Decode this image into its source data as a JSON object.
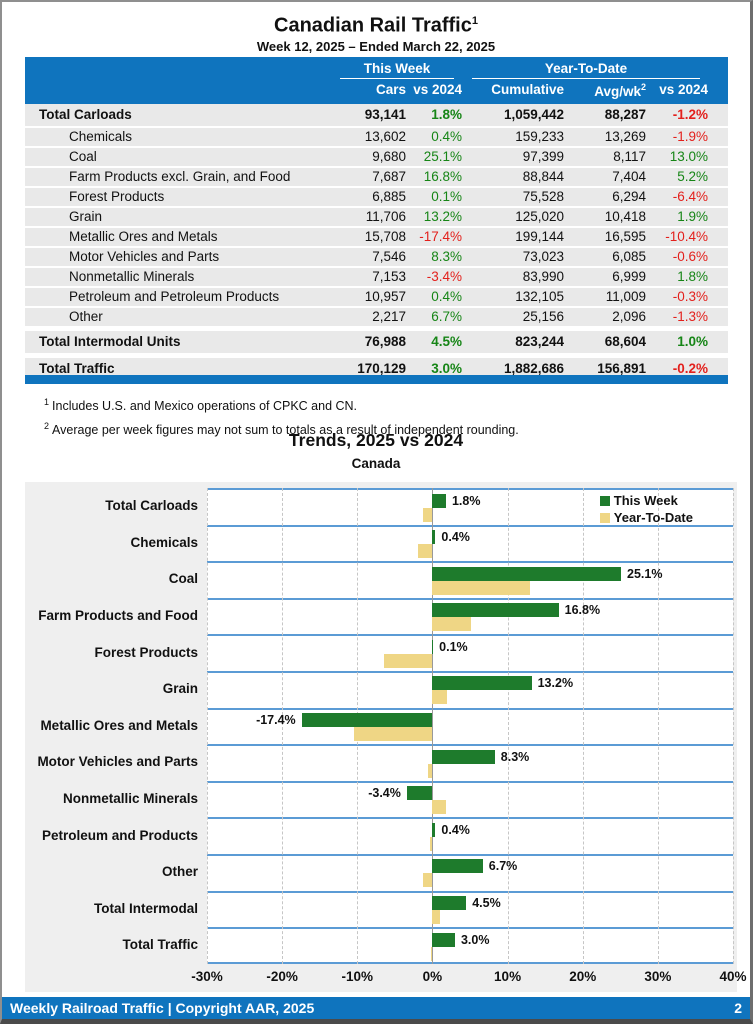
{
  "header": {
    "title": "Canadian Rail Traffic",
    "title_sup": "1",
    "subtitle": "Week 12, 2025 – Ended March 22, 2025"
  },
  "table": {
    "group_headers": [
      {
        "label": "This Week"
      },
      {
        "label": "Year-To-Date"
      }
    ],
    "column_headers": [
      "Cars",
      "vs 2024",
      "Cumulative",
      "Avg/wk",
      "vs 2024"
    ],
    "avgwk_sup": "2",
    "rows": [
      {
        "label": "Total Carloads",
        "type": "total",
        "spacer": false,
        "cars": "93,141",
        "wk_vs": "1.8%",
        "wk_vs_color": "green",
        "cumulative": "1,059,442",
        "avg_wk": "88,287",
        "ytd_vs": "-1.2%",
        "ytd_vs_color": "red"
      },
      {
        "label": "Chemicals",
        "type": "sub",
        "spacer": false,
        "cars": "13,602",
        "wk_vs": "0.4%",
        "wk_vs_color": "green",
        "cumulative": "159,233",
        "avg_wk": "13,269",
        "ytd_vs": "-1.9%",
        "ytd_vs_color": "red"
      },
      {
        "label": "Coal",
        "type": "sub",
        "spacer": false,
        "cars": "9,680",
        "wk_vs": "25.1%",
        "wk_vs_color": "green",
        "cumulative": "97,399",
        "avg_wk": "8,117",
        "ytd_vs": "13.0%",
        "ytd_vs_color": "green"
      },
      {
        "label": "Farm Products excl. Grain, and Food",
        "type": "sub",
        "spacer": false,
        "cars": "7,687",
        "wk_vs": "16.8%",
        "wk_vs_color": "green",
        "cumulative": "88,844",
        "avg_wk": "7,404",
        "ytd_vs": "5.2%",
        "ytd_vs_color": "green"
      },
      {
        "label": "Forest Products",
        "type": "sub",
        "spacer": false,
        "cars": "6,885",
        "wk_vs": "0.1%",
        "wk_vs_color": "green",
        "cumulative": "75,528",
        "avg_wk": "6,294",
        "ytd_vs": "-6.4%",
        "ytd_vs_color": "red"
      },
      {
        "label": "Grain",
        "type": "sub",
        "spacer": false,
        "cars": "11,706",
        "wk_vs": "13.2%",
        "wk_vs_color": "green",
        "cumulative": "125,020",
        "avg_wk": "10,418",
        "ytd_vs": "1.9%",
        "ytd_vs_color": "green"
      },
      {
        "label": "Metallic Ores and Metals",
        "type": "sub",
        "spacer": false,
        "cars": "15,708",
        "wk_vs": "-17.4%",
        "wk_vs_color": "red",
        "cumulative": "199,144",
        "avg_wk": "16,595",
        "ytd_vs": "-10.4%",
        "ytd_vs_color": "red"
      },
      {
        "label": "Motor Vehicles and Parts",
        "type": "sub",
        "spacer": false,
        "cars": "7,546",
        "wk_vs": "8.3%",
        "wk_vs_color": "green",
        "cumulative": "73,023",
        "avg_wk": "6,085",
        "ytd_vs": "-0.6%",
        "ytd_vs_color": "red"
      },
      {
        "label": "Nonmetallic Minerals",
        "type": "sub",
        "spacer": false,
        "cars": "7,153",
        "wk_vs": "-3.4%",
        "wk_vs_color": "red",
        "cumulative": "83,990",
        "avg_wk": "6,999",
        "ytd_vs": "1.8%",
        "ytd_vs_color": "green"
      },
      {
        "label": "Petroleum and Petroleum Products",
        "type": "sub",
        "spacer": false,
        "cars": "10,957",
        "wk_vs": "0.4%",
        "wk_vs_color": "green",
        "cumulative": "132,105",
        "avg_wk": "11,009",
        "ytd_vs": "-0.3%",
        "ytd_vs_color": "red"
      },
      {
        "label": "Other",
        "type": "sub",
        "spacer": false,
        "cars": "2,217",
        "wk_vs": "6.7%",
        "wk_vs_color": "green",
        "cumulative": "25,156",
        "avg_wk": "2,096",
        "ytd_vs": "-1.3%",
        "ytd_vs_color": "red"
      },
      {
        "label": "Total Intermodal Units",
        "type": "total",
        "spacer": true,
        "cars": "76,988",
        "wk_vs": "4.5%",
        "wk_vs_color": "green",
        "cumulative": "823,244",
        "avg_wk": "68,604",
        "ytd_vs": "1.0%",
        "ytd_vs_color": "green"
      },
      {
        "label": "Total Traffic",
        "type": "total",
        "spacer": true,
        "cars": "170,129",
        "wk_vs": "3.0%",
        "wk_vs_color": "green",
        "cumulative": "1,882,686",
        "avg_wk": "156,891",
        "ytd_vs": "-0.2%",
        "ytd_vs_color": "red"
      }
    ]
  },
  "footnotes": [
    {
      "marker": "1",
      "text": "Includes U.S. and Mexico operations of CPKC and CN."
    },
    {
      "marker": "2",
      "text": "Average per week figures may not sum to totals as a result of independent rounding."
    }
  ],
  "chart_data": {
    "type": "bar",
    "orientation": "horizontal",
    "title": "Trends, 2025 vs 2024",
    "subtitle": "Canada",
    "categories": [
      "Total Carloads",
      "Chemicals",
      "Coal",
      "Farm Products and Food",
      "Forest Products",
      "Grain",
      "Metallic Ores and Metals",
      "Motor Vehicles and Parts",
      "Nonmetallic Minerals",
      "Petroleum and Products",
      "Other",
      "Total Intermodal",
      "Total Traffic"
    ],
    "series": [
      {
        "name": "This Week",
        "color": "#1E7B2C",
        "values": [
          1.8,
          0.4,
          25.1,
          16.8,
          0.1,
          13.2,
          -17.4,
          8.3,
          -3.4,
          0.4,
          6.7,
          4.5,
          3.0
        ]
      },
      {
        "name": "Year-To-Date",
        "color": "#EFD685",
        "values": [
          -1.2,
          -1.9,
          13.0,
          5.2,
          -6.4,
          1.9,
          -10.4,
          -0.6,
          1.8,
          -0.3,
          -1.3,
          1.0,
          -0.2
        ]
      }
    ],
    "data_labels": [
      "1.8%",
      "0.4%",
      "25.1%",
      "16.8%",
      "0.1%",
      "13.2%",
      "-17.4%",
      "8.3%",
      "-3.4%",
      "0.4%",
      "6.7%",
      "4.5%",
      "3.0%"
    ],
    "xlim": [
      -30,
      40
    ],
    "x_ticks": [
      -30,
      -20,
      -10,
      0,
      10,
      20,
      30,
      40
    ],
    "x_tick_labels": [
      "-30%",
      "-20%",
      "-10%",
      "0%",
      "10%",
      "20%",
      "30%",
      "40%"
    ],
    "legend_position": "top-right",
    "grid": "vertical-dashed"
  },
  "footer": {
    "left": "Weekly Railroad Traffic | Copyright AAR, 2025",
    "page": "2"
  },
  "colors": {
    "header_blue": "#0F74BE",
    "positive_green": "#168516",
    "negative_red": "#E3201C",
    "bar_green": "#1E7B2C",
    "bar_tan": "#EFD685",
    "band_line_blue": "#5B9BD5",
    "row_gray": "#E9E9E9",
    "panel_gray": "#EFEFEF"
  }
}
